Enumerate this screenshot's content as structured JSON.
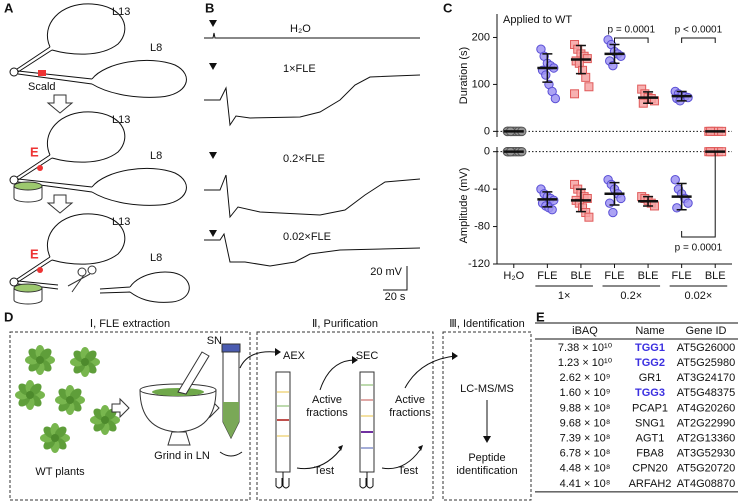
{
  "panel_a": {
    "letter": "A",
    "steps": [
      {
        "upper": "L13",
        "lower": "L8",
        "note": "Scald"
      },
      {
        "upper": "L13",
        "lower": "L8",
        "electrode": "E"
      },
      {
        "upper": "L13",
        "lower": "L8",
        "electrode": "E"
      }
    ]
  },
  "panel_b": {
    "letter": "B",
    "traces": [
      "H₂O",
      "1×FLE",
      "0.2×FLE",
      "0.02×FLE"
    ],
    "scale_y": "20 mV",
    "scale_x": "20 s"
  },
  "panel_c": {
    "letter": "C"
  },
  "chart_data": [
    {
      "type": "scatter",
      "title": "Applied to WT",
      "ylabel": "Duration (s)",
      "ylim": [
        -12,
        250
      ],
      "yticks": [
        0,
        100,
        200
      ],
      "zero_line": true,
      "colors": [
        "#9a9a9a",
        "#9d93f2",
        "#f6a3a3",
        "#9d93f2",
        "#f6a3a3",
        "#9d93f2",
        "#f6a3a3"
      ],
      "markers": [
        "circle",
        "circle",
        "square",
        "circle",
        "square",
        "circle",
        "square"
      ],
      "points": [
        [
          0,
          0,
          0,
          0,
          0,
          0,
          0,
          0,
          0,
          0,
          0,
          0
        ],
        [
          175,
          160,
          145,
          140,
          135,
          130,
          120,
          100,
          85,
          70
        ],
        [
          185,
          175,
          165,
          160,
          155,
          150,
          145,
          130,
          115,
          95,
          80
        ],
        [
          195,
          185,
          170,
          165,
          160,
          150,
          140
        ],
        [
          90,
          80,
          72,
          70,
          65,
          60
        ],
        [
          85,
          80,
          76,
          74,
          72,
          70,
          65
        ],
        [
          0,
          0,
          0,
          0,
          0,
          0
        ]
      ],
      "means": [
        0,
        135,
        153,
        165,
        72,
        75,
        0
      ],
      "sds": [
        0,
        30,
        30,
        20,
        12,
        10,
        0
      ],
      "annotations": [
        {
          "label": "p = 0.0001",
          "from": 3,
          "to": 4
        },
        {
          "label": "p < 0.0001",
          "from": 5,
          "to": 6
        }
      ]
    },
    {
      "type": "scatter",
      "ylabel": "Amplitude (mV)",
      "ylim": [
        -120,
        5
      ],
      "yticks": [
        0,
        -40,
        -80,
        -120
      ],
      "zero_line": true,
      "categories": [
        "H₂O",
        "FLE",
        "BLE",
        "FLE",
        "BLE",
        "FLE",
        "BLE"
      ],
      "groups": [
        {
          "label": "1×",
          "from": 1,
          "to": 2
        },
        {
          "label": "0.2×",
          "from": 3,
          "to": 4
        },
        {
          "label": "0.02×",
          "from": 5,
          "to": 6
        }
      ],
      "colors": [
        "#9a9a9a",
        "#9d93f2",
        "#f6a3a3",
        "#9d93f2",
        "#f6a3a3",
        "#9d93f2",
        "#f6a3a3"
      ],
      "markers": [
        "circle",
        "circle",
        "square",
        "circle",
        "square",
        "circle",
        "square"
      ],
      "points": [
        [
          0,
          0,
          0,
          0,
          0,
          0,
          0,
          0,
          0,
          0,
          0,
          0
        ],
        [
          -40,
          -45,
          -48,
          -50,
          -52,
          -55,
          -58,
          -60,
          -62
        ],
        [
          -35,
          -40,
          -45,
          -48,
          -50,
          -52,
          -55,
          -60,
          -65,
          -70
        ],
        [
          -30,
          -35,
          -40,
          -45,
          -50,
          -55,
          -65
        ],
        [
          -48,
          -50,
          -52,
          -55,
          -58
        ],
        [
          -30,
          -40,
          -45,
          -50,
          -55,
          -60
        ],
        [
          0,
          0,
          0,
          0,
          0,
          0
        ]
      ],
      "means": [
        0,
        -51,
        -52,
        -45,
        -53,
        -48,
        0
      ],
      "sds": [
        0,
        8,
        12,
        12,
        5,
        14,
        0
      ],
      "annotations": [
        {
          "label": "p = 0.0001",
          "from": 5,
          "to": 6
        }
      ]
    }
  ],
  "panel_d": {
    "letter": "D",
    "sections": [
      "Ⅰ, FLE extraction",
      "Ⅱ, Purification",
      "Ⅲ, Identification"
    ],
    "plants": "WT plants",
    "grind": "Grind in LN",
    "supernatant": "SN",
    "aex": "AEX",
    "sec": "SEC",
    "active_1": "Active fractions",
    "test_1": "Test",
    "active_2": "Active fractions",
    "test_2": "Test",
    "lcms": "LC-MS/MS",
    "peptide": "Peptide identification"
  },
  "panel_e": {
    "letter": "E",
    "table": {
      "header": [
        "iBAQ",
        "Name",
        "Gene ID"
      ],
      "rows": [
        [
          "7.38 × 10¹⁰",
          "TGG1",
          "AT5G26000"
        ],
        [
          "1.23 × 10¹⁰",
          "TGG2",
          "AT5G25980"
        ],
        [
          "2.62 × 10⁹",
          "GR1",
          "AT3G24170"
        ],
        [
          "1.60 × 10⁹",
          "TGG3",
          "AT5G48375"
        ],
        [
          "9.88 × 10⁸",
          "PCAP1",
          "AT4G20260"
        ],
        [
          "9.68 × 10⁸",
          "SNG1",
          "AT2G22990"
        ],
        [
          "7.39 × 10⁸",
          "AGT1",
          "AT2G13360"
        ],
        [
          "6.78 × 10⁸",
          "FBA8",
          "AT3G52930"
        ],
        [
          "4.48 × 10⁸",
          "CPN20",
          "AT5G20720"
        ],
        [
          "4.41 × 10⁸",
          "ARFAH2",
          "AT4G08870"
        ]
      ],
      "highlight_rows": [
        0,
        1,
        3
      ],
      "highlight_color": "#3b2fe0"
    }
  }
}
